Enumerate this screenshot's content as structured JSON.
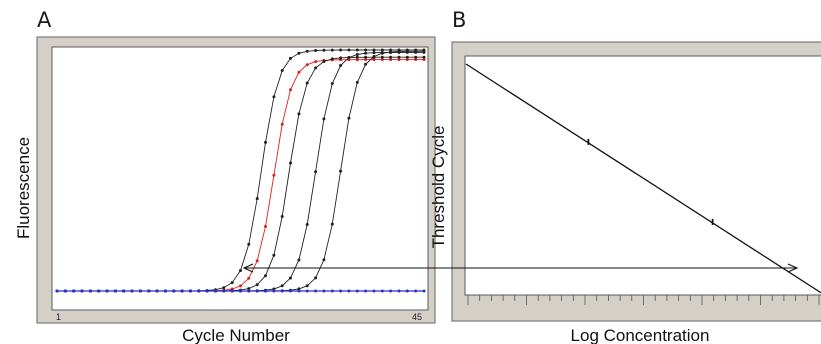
{
  "panels": {
    "a_label": "A",
    "b_label": "B"
  },
  "colors": {
    "frame": "#d4d0c8",
    "sample_curve": "#222222",
    "highlight_curve": "#e0201e",
    "baseline": "#2233cc",
    "plot_bg": "#ffffff"
  },
  "chart_data": [
    {
      "type": "line",
      "xlabel": "Cycle Number",
      "ylabel": "Fluorescence",
      "x_tick_labels": [
        "1",
        "45"
      ],
      "xlim": [
        1,
        45
      ],
      "ylim": [
        0,
        1
      ],
      "grid": false,
      "series": [
        {
          "color": "#222222",
          "midpoint": 25.5,
          "plateau": 1.0
        },
        {
          "color": "#e0201e",
          "midpoint": 27.0,
          "plateau": 0.96
        },
        {
          "color": "#222222",
          "midpoint": 28.8,
          "plateau": 0.97
        },
        {
          "color": "#222222",
          "midpoint": 32.0,
          "plateau": 0.99
        },
        {
          "color": "#222222",
          "midpoint": 35.0,
          "plateau": 0.995
        },
        {
          "color": "#2233cc",
          "baseline": true,
          "plateau": 0.0
        }
      ]
    },
    {
      "type": "line",
      "xlabel": "Log Concentration",
      "ylabel": "Threshold Cycle",
      "grid": false,
      "series": [
        {
          "color": "#111111",
          "x": [
            0,
            1
          ],
          "y": [
            1,
            0
          ]
        }
      ],
      "annotations": [
        {
          "type": "double-arrow",
          "from_panel": "A",
          "to_panel": "B"
        }
      ]
    }
  ]
}
